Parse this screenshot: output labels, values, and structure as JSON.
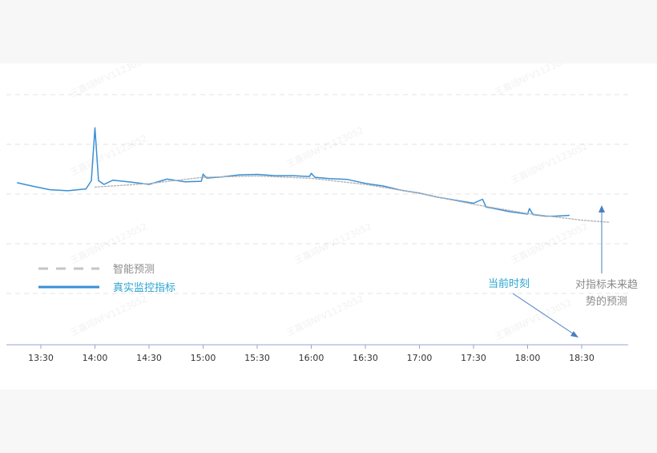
{
  "chart_data": {
    "type": "line",
    "title": "",
    "xlabel": "",
    "ylabel": "",
    "x_ticks": [
      "13:30",
      "14:00",
      "14:30",
      "15:00",
      "15:30",
      "16:00",
      "16:30",
      "17:00",
      "17:30",
      "18:00",
      "18:30"
    ],
    "grid": "horizontal dashed",
    "legend_placement": "bottom-left",
    "series": [
      {
        "name": "真实监控指标",
        "style": "solid",
        "color": "#3a8fd6",
        "x": [
          "13:17",
          "13:25",
          "13:35",
          "13:45",
          "13:55",
          "13:58",
          "14:00",
          "14:02",
          "14:05",
          "14:10",
          "14:20",
          "14:30",
          "14:40",
          "14:50",
          "14:59",
          "15:00",
          "15:02",
          "15:10",
          "15:20",
          "15:30",
          "15:40",
          "15:50",
          "15:55",
          "15:59",
          "16:00",
          "16:02",
          "16:10",
          "16:20",
          "16:30",
          "16:40",
          "16:50",
          "17:00",
          "17:10",
          "17:20",
          "17:30",
          "17:35",
          "17:37",
          "17:40",
          "17:50",
          "18:00",
          "18:01",
          "18:03",
          "18:10",
          "18:15",
          "18:23"
        ],
        "y": [
          61.2,
          60.0,
          58.6,
          58.2,
          58.9,
          62.0,
          82.0,
          62.0,
          60.6,
          62.2,
          61.5,
          60.6,
          62.6,
          61.6,
          61.8,
          64.5,
          63.0,
          63.4,
          64.2,
          64.4,
          63.9,
          63.9,
          63.7,
          63.6,
          64.8,
          63.3,
          62.8,
          62.5,
          61.0,
          60.0,
          58.4,
          57.3,
          55.8,
          54.6,
          53.5,
          55.0,
          52.0,
          51.7,
          50.3,
          49.4,
          51.5,
          49.2,
          48.6,
          48.6,
          48.9
        ]
      },
      {
        "name": "智能预测",
        "style": "dotted",
        "color": "#b4b4b4",
        "x": [
          "14:00",
          "14:30",
          "15:00",
          "15:30",
          "16:00",
          "16:30",
          "17:00",
          "17:30",
          "18:00",
          "18:30",
          "18:45"
        ],
        "y": [
          59.6,
          60.9,
          63.3,
          63.8,
          62.9,
          60.6,
          57.2,
          53.1,
          49.6,
          47.1,
          46.3
        ]
      }
    ],
    "annotations": [
      {
        "text": "当前时刻"
      },
      {
        "text_lines": [
          "对指标未来趋",
          "势的预测"
        ]
      }
    ]
  },
  "legend": {
    "forecast_label": "智能预测",
    "actual_label": "真实监控指标"
  },
  "annotations": {
    "current_time": "当前时刻",
    "trend_line1": "对指标未来趋",
    "trend_line2": "势的预测"
  },
  "watermark": "王嘉翊NFV1123052",
  "colors": {
    "actual": "#3a8fd6",
    "forecast": "#b4b4b4",
    "current_time_text": "#2aa4cf",
    "trend_text": "#8a8a8a",
    "axis": "#9aa3cf",
    "grid": "#e3e3e3",
    "arrow": "#4a7ec2"
  }
}
